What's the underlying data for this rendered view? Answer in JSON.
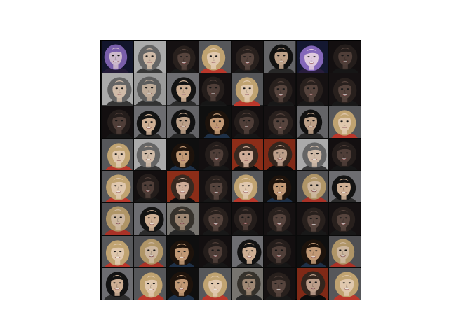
{
  "grid": {
    "rows": 8,
    "cols": 8,
    "palettes": {
      "A": {
        "bg": "#6e6f73",
        "hair": "#c8aa76",
        "skin": "#ead1b6",
        "shirt": "#c23a2d"
      },
      "B": {
        "bg": "#8c8c90",
        "hair": "#141414",
        "skin": "#d7b79b",
        "shirt": "#2d2d2d"
      },
      "C": {
        "bg": "#141414",
        "hair": "#1f140d",
        "skin": "#caa07a",
        "shirt": "#20324a"
      },
      "D": {
        "bg": "#1b1718",
        "hair": "#2a221f",
        "skin": "#5a4740",
        "shirt": "#1a1a1a"
      },
      "E": {
        "bg": "#d8d8d8",
        "hair": "#6a6a6a",
        "skin": "#d9c3af",
        "shirt": "#3a3a3a"
      },
      "F": {
        "bg": "#b23a20",
        "hair": "#3b2b22",
        "skin": "#d7b49e",
        "shirt": "#0f0f0f"
      },
      "G": {
        "bg": "#1a1f3f",
        "hair": "#8a6cc2",
        "skin": "#e9d3e8",
        "shirt": "#2a1f40"
      },
      "H": {
        "bg": "#a6a39c",
        "hair": "#3e3a33",
        "skin": "#b59b84",
        "shirt": "#2e2e2e"
      }
    },
    "tiles": [
      "G",
      "E",
      "D",
      "A",
      "D",
      "B",
      "G",
      "D",
      "E",
      "E",
      "B",
      "D",
      "A",
      "D",
      "D",
      "D",
      "D",
      "B",
      "B",
      "C",
      "D",
      "D",
      "B",
      "A",
      "A",
      "E",
      "C",
      "D",
      "F",
      "F",
      "E",
      "D",
      "A",
      "D",
      "F",
      "D",
      "A",
      "C",
      "A",
      "B",
      "A",
      "B",
      "H",
      "D",
      "D",
      "D",
      "D",
      "D",
      "A",
      "A",
      "C",
      "D",
      "B",
      "D",
      "C",
      "A",
      "B",
      "A",
      "C",
      "A",
      "H",
      "D",
      "F",
      "A"
    ]
  }
}
